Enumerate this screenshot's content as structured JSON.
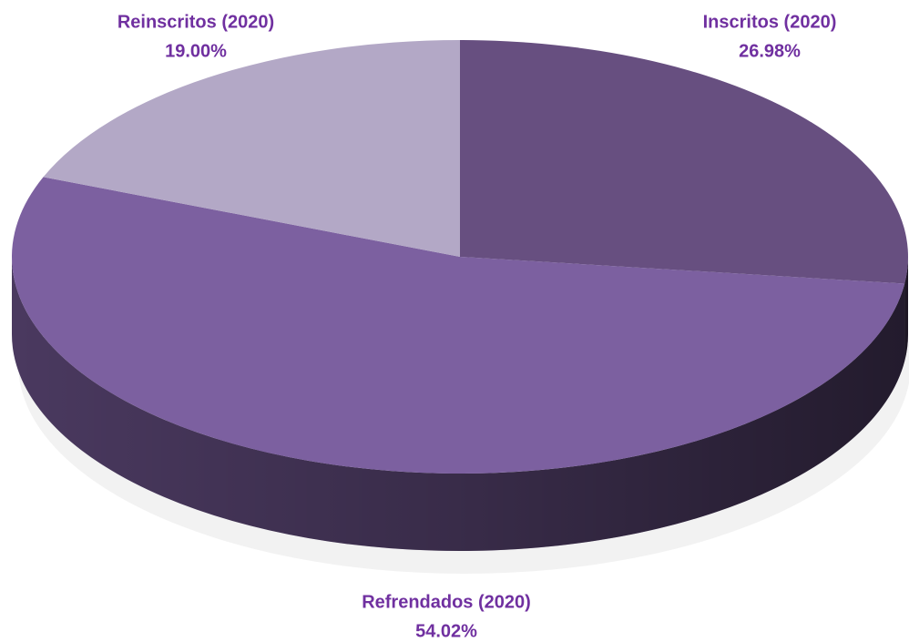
{
  "chart_data": {
    "type": "pie",
    "categories": [
      "Inscritos (2020)",
      "Refrendados (2020)",
      "Reinscritos (2020)"
    ],
    "values": [
      26.98,
      54.02,
      19.0
    ],
    "value_labels": [
      "26.98%",
      "54.02%",
      "19.00%"
    ],
    "colors": [
      "#674f80",
      "#7c60a0",
      "#b3a8c6"
    ]
  }
}
